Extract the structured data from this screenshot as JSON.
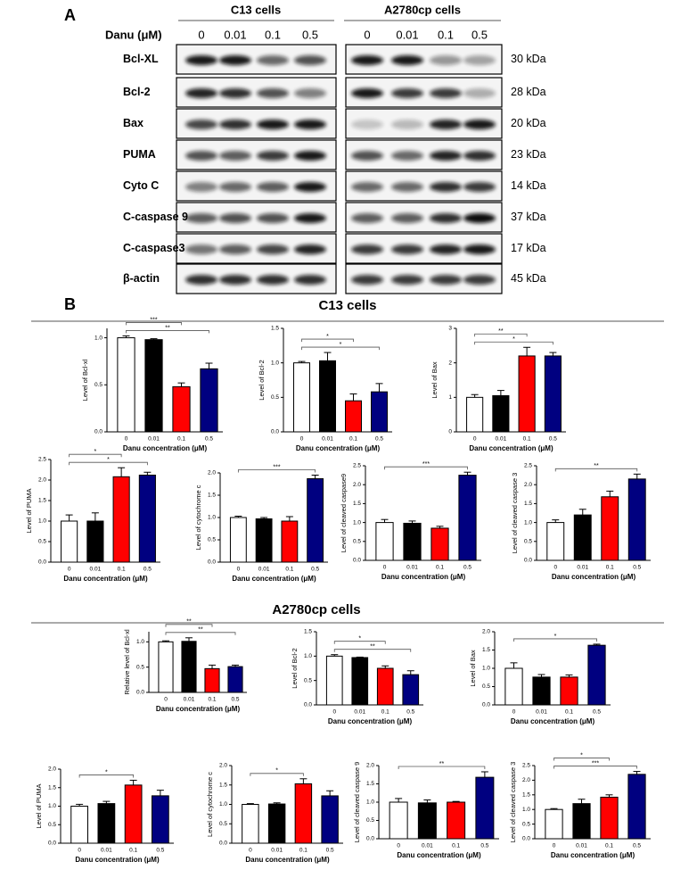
{
  "panel_a": {
    "label": "A",
    "dose_label": "Danu (μM)",
    "groups": [
      {
        "name": "C13 cells",
        "doses": [
          "0",
          "0.01",
          "0.1",
          "0.5"
        ]
      },
      {
        "name": "A2780cp  cells",
        "doses": [
          "0",
          "0.01",
          "0.1",
          "0.5"
        ]
      }
    ],
    "proteins": [
      "Bcl-XL",
      "Bcl-2",
      "Bax",
      "PUMA",
      "Cyto C",
      "C-caspase 9",
      "C-caspase3",
      "β-actin"
    ],
    "sizes": [
      "30 kDa",
      "28 kDa",
      "20 kDa",
      "23 kDa",
      "14 kDa",
      "37 kDa",
      "17 kDa",
      "45 kDa"
    ]
  },
  "panel_b": {
    "label": "B",
    "sections": [
      "C13 cells",
      "A2780cp cells"
    ]
  },
  "chart_data": [
    {
      "type": "bar",
      "y_label": "Level of Bcl-xl",
      "x_label": "Danu concentration (μM)",
      "categories": [
        "0",
        "0.01",
        "0.1",
        "0.5"
      ],
      "values": [
        1.0,
        0.98,
        0.48,
        0.67
      ],
      "errors": [
        0.02,
        0.01,
        0.04,
        0.06
      ],
      "colors": [
        "#ffffff",
        "#000000",
        "#ff0000",
        "#000080"
      ],
      "ylim": [
        0,
        1.1
      ],
      "yticks": [
        {
          "value": 0,
          "label": "0.0"
        },
        0.5,
        {
          "value": 1,
          "label": "1.0"
        }
      ],
      "annotations": [
        {
          "between": [
            "0",
            "0.1"
          ],
          "label": "***"
        },
        {
          "between": [
            "0",
            "0.5"
          ],
          "label": "**"
        }
      ]
    },
    {
      "type": "bar",
      "y_label": "Level of Bcl-2",
      "x_label": "Danu concentration (μM)",
      "categories": [
        "0",
        "0.01",
        "0.1",
        "0.5"
      ],
      "values": [
        1.0,
        1.03,
        0.45,
        0.58
      ],
      "errors": [
        0.02,
        0.12,
        0.1,
        0.12
      ],
      "colors": [
        "#ffffff",
        "#000000",
        "#ff0000",
        "#000080"
      ],
      "ylim": [
        0,
        1.5
      ],
      "yticks": [
        {
          "value": 0,
          "label": "0.0"
        },
        0.5,
        {
          "value": 1,
          "label": "1.0"
        },
        1.5
      ],
      "annotations": [
        {
          "between": [
            "0",
            "0.1"
          ],
          "label": "*"
        },
        {
          "between": [
            "0",
            "0.5"
          ],
          "label": "*"
        }
      ]
    },
    {
      "type": "bar",
      "y_label": "Level of Bax",
      "x_label": "Danu concentration (μM)",
      "categories": [
        "0",
        "0.01",
        "0.1",
        "0.5"
      ],
      "values": [
        1.0,
        1.05,
        2.2,
        2.2
      ],
      "errors": [
        0.08,
        0.15,
        0.25,
        0.1
      ],
      "colors": [
        "#ffffff",
        "#000000",
        "#ff0000",
        "#000080"
      ],
      "ylim": [
        0,
        3
      ],
      "yticks": [
        0,
        1,
        2,
        3
      ],
      "annotations": [
        {
          "between": [
            "0",
            "0.1"
          ],
          "label": "**"
        },
        {
          "between": [
            "0",
            "0.5"
          ],
          "label": "*"
        }
      ]
    },
    {
      "type": "bar",
      "y_label": "Level of PUMA",
      "x_label": "Danu concentration (μM)",
      "categories": [
        "0",
        "0.01",
        "0.1",
        "0.5"
      ],
      "values": [
        1.0,
        1.0,
        2.08,
        2.12
      ],
      "errors": [
        0.15,
        0.2,
        0.22,
        0.07
      ],
      "colors": [
        "#ffffff",
        "#000000",
        "#ff0000",
        "#000080"
      ],
      "ylim": [
        0,
        2.5
      ],
      "yticks": [
        {
          "value": 0,
          "label": "0.0"
        },
        0.5,
        {
          "value": 1,
          "label": "1.0"
        },
        1.5,
        {
          "value": 2,
          "label": "2.0"
        },
        2.5
      ],
      "annotations": [
        {
          "between": [
            "0",
            "0.1"
          ],
          "label": "*"
        },
        {
          "between": [
            "0",
            "0.5"
          ],
          "label": "*"
        }
      ]
    },
    {
      "type": "bar",
      "y_label": "Level of cytochrome c",
      "x_label": "Danu concentration (μM)",
      "categories": [
        "0",
        "0.01",
        "0.1",
        "0.5"
      ],
      "values": [
        1.0,
        0.97,
        0.92,
        1.87
      ],
      "errors": [
        0.03,
        0.03,
        0.1,
        0.08
      ],
      "colors": [
        "#ffffff",
        "#000000",
        "#ff0000",
        "#000080"
      ],
      "ylim": [
        0,
        2.0
      ],
      "yticks": [
        {
          "value": 0,
          "label": "0.0"
        },
        0.5,
        {
          "value": 1,
          "label": "1.0"
        },
        1.5,
        {
          "value": 2,
          "label": "2.0"
        }
      ],
      "annotations": [
        {
          "between": [
            "0",
            "0.5"
          ],
          "label": "***"
        }
      ]
    },
    {
      "type": "bar",
      "y_label": "Level of cleaved caspase9",
      "x_label": "Danu concentration (μM)",
      "categories": [
        "0",
        "0.01",
        "0.1",
        "0.5"
      ],
      "values": [
        1.0,
        0.98,
        0.85,
        2.25
      ],
      "errors": [
        0.08,
        0.06,
        0.05,
        0.08
      ],
      "colors": [
        "#ffffff",
        "#000000",
        "#ff0000",
        "#000080"
      ],
      "ylim": [
        0,
        2.5
      ],
      "yticks": [
        {
          "value": 0,
          "label": "0.0"
        },
        0.5,
        {
          "value": 1,
          "label": "1.0"
        },
        1.5,
        {
          "value": 2,
          "label": "2.0"
        },
        2.5
      ],
      "annotations": [
        {
          "between": [
            "0",
            "0.5"
          ],
          "label": "***"
        }
      ]
    },
    {
      "type": "bar",
      "y_label": "Level of cleaved caspase 3",
      "x_label": "Danu concentration (μM)",
      "categories": [
        "0",
        "0.01",
        "0.1",
        "0.5"
      ],
      "values": [
        1.0,
        1.2,
        1.68,
        2.15
      ],
      "errors": [
        0.07,
        0.15,
        0.15,
        0.13
      ],
      "colors": [
        "#ffffff",
        "#000000",
        "#ff0000",
        "#000080"
      ],
      "ylim": [
        0,
        2.5
      ],
      "yticks": [
        {
          "value": 0,
          "label": "0.0"
        },
        0.5,
        {
          "value": 1,
          "label": "1.0"
        },
        1.5,
        {
          "value": 2,
          "label": "2.0"
        },
        2.5
      ],
      "annotations": [
        {
          "between": [
            "0",
            "0.5"
          ],
          "label": "**"
        }
      ]
    },
    {
      "type": "bar",
      "y_label": "Relative level of Bcl-xl",
      "x_label": "Danu concentration (μM)",
      "categories": [
        "0",
        "0.01",
        "0.1",
        "0.5"
      ],
      "values": [
        1.0,
        1.01,
        0.47,
        0.51
      ],
      "errors": [
        0.02,
        0.07,
        0.07,
        0.03
      ],
      "colors": [
        "#ffffff",
        "#000000",
        "#ff0000",
        "#000080"
      ],
      "ylim": [
        0,
        1.2
      ],
      "yticks": [
        {
          "value": 0,
          "label": "0.0"
        },
        0.5,
        {
          "value": 1,
          "label": "1.0"
        }
      ],
      "annotations": [
        {
          "between": [
            "0",
            "0.1"
          ],
          "label": "**"
        },
        {
          "between": [
            "0",
            "0.5"
          ],
          "label": "**"
        }
      ]
    },
    {
      "type": "bar",
      "y_label": "Level of Bcl-2",
      "x_label": "Danu concentration (μM)",
      "categories": [
        "0",
        "0.01",
        "0.1",
        "0.5"
      ],
      "values": [
        1.0,
        0.97,
        0.75,
        0.62
      ],
      "errors": [
        0.03,
        0.01,
        0.05,
        0.08
      ],
      "colors": [
        "#ffffff",
        "#000000",
        "#ff0000",
        "#000080"
      ],
      "ylim": [
        0,
        1.5
      ],
      "yticks": [
        {
          "value": 0,
          "label": "0.0"
        },
        0.5,
        {
          "value": 1,
          "label": "1.0"
        },
        1.5
      ],
      "annotations": [
        {
          "between": [
            "0",
            "0.1"
          ],
          "label": "*"
        },
        {
          "between": [
            "0",
            "0.5"
          ],
          "label": "**"
        }
      ]
    },
    {
      "type": "bar",
      "y_label": "Level of Bax",
      "x_label": "Danu concentration (μM)",
      "categories": [
        "0",
        "0.01",
        "0.1",
        "0.5"
      ],
      "values": [
        1.0,
        0.76,
        0.76,
        1.63
      ],
      "errors": [
        0.15,
        0.07,
        0.06,
        0.03
      ],
      "colors": [
        "#ffffff",
        "#000000",
        "#ff0000",
        "#000080"
      ],
      "ylim": [
        0,
        2.0
      ],
      "yticks": [
        {
          "value": 0,
          "label": "0.0"
        },
        0.5,
        {
          "value": 1,
          "label": "1.0"
        },
        1.5,
        {
          "value": 2,
          "label": "2.0"
        }
      ],
      "annotations": [
        {
          "between": [
            "0",
            "0.5"
          ],
          "label": "*"
        }
      ]
    },
    {
      "type": "bar",
      "y_label": "Level of PUMA",
      "x_label": "Danu concentration (μM)",
      "categories": [
        "0",
        "0.01",
        "0.1",
        "0.5"
      ],
      "values": [
        1.0,
        1.07,
        1.57,
        1.28
      ],
      "errors": [
        0.05,
        0.06,
        0.13,
        0.15
      ],
      "colors": [
        "#ffffff",
        "#000000",
        "#ff0000",
        "#000080"
      ],
      "ylim": [
        0,
        2.0
      ],
      "yticks": [
        {
          "value": 0,
          "label": "0.0"
        },
        0.5,
        {
          "value": 1,
          "label": "1.0"
        },
        1.5,
        {
          "value": 2,
          "label": "2.0"
        }
      ],
      "annotations": [
        {
          "between": [
            "0",
            "0.1"
          ],
          "label": "*"
        }
      ]
    },
    {
      "type": "bar",
      "y_label": "Level of cytochrome c",
      "x_label": "Danu concentration (μM)",
      "categories": [
        "0",
        "0.01",
        "0.1",
        "0.5"
      ],
      "values": [
        1.0,
        1.01,
        1.53,
        1.22
      ],
      "errors": [
        0.02,
        0.03,
        0.13,
        0.13
      ],
      "colors": [
        "#ffffff",
        "#000000",
        "#ff0000",
        "#000080"
      ],
      "ylim": [
        0,
        2.0
      ],
      "yticks": [
        {
          "value": 0,
          "label": "0.0"
        },
        0.5,
        {
          "value": 1,
          "label": "1.0"
        },
        1.5,
        {
          "value": 2,
          "label": "2.0"
        }
      ],
      "annotations": [
        {
          "between": [
            "0",
            "0.1"
          ],
          "label": "*"
        }
      ]
    },
    {
      "type": "bar",
      "y_label": "Level of cleaved caspase 9",
      "x_label": "Danu concentration (μM)",
      "categories": [
        "0",
        "0.01",
        "0.1",
        "0.5"
      ],
      "values": [
        1.0,
        0.98,
        1.0,
        1.68
      ],
      "errors": [
        0.1,
        0.08,
        0.02,
        0.15
      ],
      "colors": [
        "#ffffff",
        "#000000",
        "#ff0000",
        "#000080"
      ],
      "ylim": [
        0,
        2.0
      ],
      "yticks": [
        {
          "value": 0,
          "label": "0.0"
        },
        0.5,
        {
          "value": 1,
          "label": "1.0"
        },
        1.5,
        {
          "value": 2,
          "label": "2.0"
        }
      ],
      "annotations": [
        {
          "between": [
            "0",
            "0.5"
          ],
          "label": "**"
        }
      ]
    },
    {
      "type": "bar",
      "y_label": "Level of cleaved caspase 3",
      "x_label": "Danu concentration (μM)",
      "categories": [
        "0",
        "0.01",
        "0.1",
        "0.5"
      ],
      "values": [
        1.0,
        1.2,
        1.42,
        2.2
      ],
      "errors": [
        0.03,
        0.15,
        0.08,
        0.1
      ],
      "colors": [
        "#ffffff",
        "#000000",
        "#ff0000",
        "#000080"
      ],
      "ylim": [
        0,
        2.5
      ],
      "yticks": [
        {
          "value": 0,
          "label": "0.0"
        },
        0.5,
        {
          "value": 1,
          "label": "1.0"
        },
        1.5,
        {
          "value": 2,
          "label": "2.0"
        },
        2.5
      ],
      "annotations": [
        {
          "between": [
            "0",
            "0.1"
          ],
          "label": "*"
        },
        {
          "between": [
            "0",
            "0.5"
          ],
          "label": "***"
        }
      ]
    }
  ]
}
